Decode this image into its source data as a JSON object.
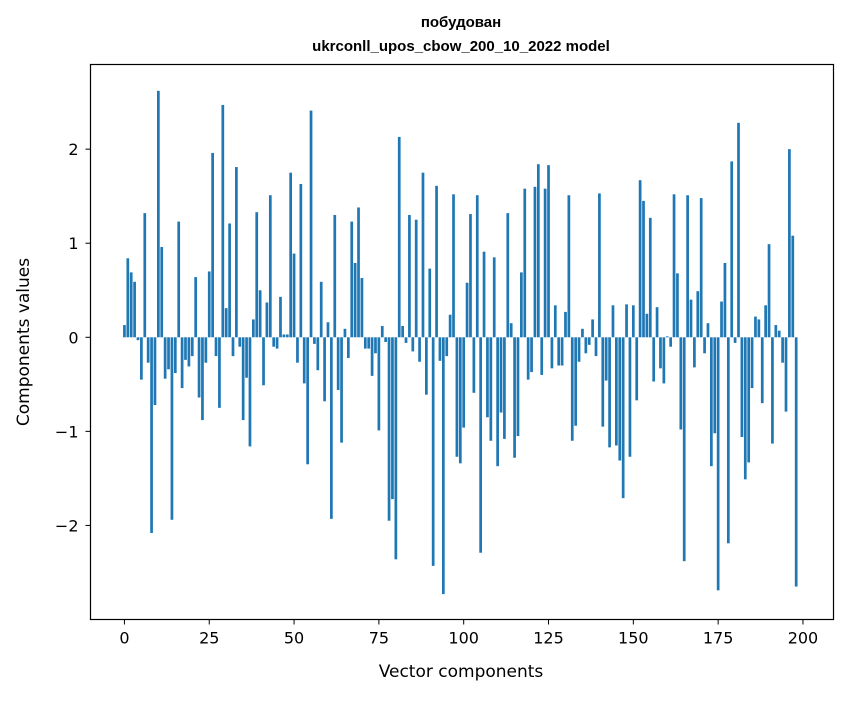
{
  "chart_data": {
    "type": "bar",
    "title_line1": "побудован",
    "title_line2": "ukrconll_upos_cbow_200_10_2022 model",
    "xlabel": "Vector components",
    "ylabel": "Components values",
    "xlim": [
      -10,
      209
    ],
    "ylim": [
      -3.0,
      2.9
    ],
    "x_ticks": [
      0,
      25,
      50,
      75,
      100,
      125,
      150,
      175,
      200
    ],
    "x_tick_labels": [
      "0",
      "25",
      "50",
      "75",
      "100",
      "125",
      "150",
      "175",
      "200"
    ],
    "y_ticks": [
      2,
      1,
      0,
      -1,
      -2
    ],
    "y_tick_labels": [
      "2",
      "1",
      "0",
      "−1",
      "−2"
    ],
    "bar_color": "#1f77b4",
    "grid": false,
    "values": [
      0.13,
      0.84,
      0.69,
      0.59,
      -0.03,
      -0.45,
      1.32,
      -0.27,
      -2.08,
      -0.72,
      2.62,
      0.96,
      -0.44,
      -0.34,
      -1.94,
      -0.38,
      1.23,
      -0.54,
      -0.24,
      -0.31,
      -0.2,
      0.64,
      -0.64,
      -0.88,
      -0.27,
      0.7,
      1.96,
      -0.2,
      -0.75,
      2.47,
      0.31,
      1.21,
      -0.2,
      1.81,
      -0.1,
      -0.88,
      -0.43,
      -1.16,
      0.19,
      1.33,
      0.5,
      -0.51,
      0.37,
      1.51,
      -0.1,
      -0.12,
      0.43,
      0.03,
      0.03,
      1.75,
      0.89,
      -0.27,
      1.63,
      -0.49,
      -1.35,
      2.41,
      -0.07,
      -0.35,
      0.59,
      -0.68,
      0.16,
      -1.93,
      1.3,
      -0.56,
      -1.12,
      0.09,
      -0.22,
      1.23,
      0.79,
      1.38,
      0.63,
      -0.12,
      -0.12,
      -0.41,
      -0.17,
      -0.99,
      0.12,
      -0.05,
      -1.95,
      -1.72,
      -2.36,
      2.13,
      0.12,
      -0.06,
      1.3,
      -0.15,
      1.25,
      -0.26,
      1.75,
      -0.61,
      0.73,
      -2.43,
      1.61,
      -0.25,
      -2.73,
      -0.2,
      0.24,
      1.52,
      -1.27,
      -1.34,
      -0.96,
      0.58,
      1.31,
      -0.59,
      1.51,
      -2.29,
      0.91,
      -0.85,
      -1.1,
      0.85,
      -1.37,
      -0.8,
      -1.08,
      1.32,
      0.15,
      -1.28,
      -1.05,
      0.69,
      1.58,
      -0.45,
      -0.37,
      1.6,
      1.84,
      -0.4,
      1.58,
      1.83,
      -0.33,
      0.34,
      -0.3,
      -0.3,
      0.27,
      1.51,
      -1.1,
      -0.94,
      -0.26,
      0.09,
      -0.17,
      -0.08,
      0.19,
      -0.2,
      1.53,
      -0.95,
      -0.46,
      -1.17,
      0.34,
      -1.15,
      -1.31,
      -1.71,
      0.35,
      -1.27,
      0.34,
      -0.67,
      1.67,
      1.45,
      0.25,
      1.27,
      -0.47,
      0.32,
      -0.33,
      -0.49,
      0.01,
      -0.1,
      1.52,
      0.68,
      -0.98,
      -2.38,
      1.51,
      0.4,
      -0.32,
      0.49,
      1.48,
      -0.17,
      0.15,
      -1.37,
      -1.02,
      -2.69,
      0.38,
      0.79,
      -2.19,
      1.87,
      -0.06,
      2.28,
      -1.06,
      -1.51,
      -1.33,
      -0.54,
      0.22,
      0.19,
      -0.7,
      0.34,
      0.99,
      -1.13,
      0.13,
      0.07,
      -0.27,
      -0.79,
      2.0,
      1.08,
      -2.65,
      0.0
    ]
  }
}
